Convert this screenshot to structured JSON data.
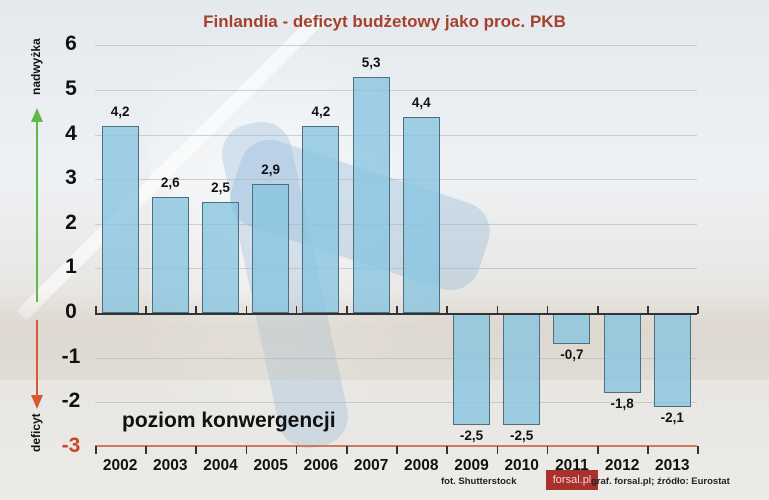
{
  "chart_data": {
    "type": "bar",
    "title": "Finlandia - deficyt budżetowy jako proc. PKB",
    "xlabel": "",
    "ylabel_up": "nadwyżka",
    "ylabel_down": "deficyt",
    "categories": [
      "2002",
      "2003",
      "2004",
      "2005",
      "2006",
      "2007",
      "2008",
      "2009",
      "2010",
      "2011",
      "2012",
      "2013"
    ],
    "values": [
      4.2,
      2.6,
      2.5,
      2.9,
      4.2,
      5.3,
      4.4,
      -2.5,
      -2.5,
      -0.7,
      -1.8,
      -2.1
    ],
    "value_labels": [
      "4,2",
      "2,6",
      "2,5",
      "2,9",
      "4,2",
      "5,3",
      "4,4",
      "-2,5",
      "-2,5",
      "-0,7",
      "-1,8",
      "-2,1"
    ],
    "ylim": [
      -3,
      6
    ],
    "yticks": [
      "6",
      "5",
      "4",
      "3",
      "2",
      "1",
      "0",
      "-1",
      "-2",
      "-3"
    ],
    "grid": true,
    "annotations": [
      "poziom konwergencji"
    ],
    "reference_line": {
      "value": -3,
      "label": "poziom konwergencji",
      "color": "#d2785f"
    },
    "bar_color": "#87c4e0"
  },
  "header": {
    "title": "Finlandia - deficyt budżetowy jako proc. PKB"
  },
  "axis": {
    "up_label": "nadwyżka",
    "down_label": "deficyt",
    "convergence_label": "poziom konwergencji"
  },
  "footer": {
    "photo_credit": "fot. Shutterstock",
    "logo": "forsal.pl",
    "source": "graf. forsal.pl;  źródło: Eurostat"
  },
  "colors": {
    "title": "#a7402b",
    "up_arrow": "#5fb84a",
    "down_arrow": "#d45a35",
    "convergence_line": "#d2785f",
    "logo_bg": "#a8312b"
  }
}
